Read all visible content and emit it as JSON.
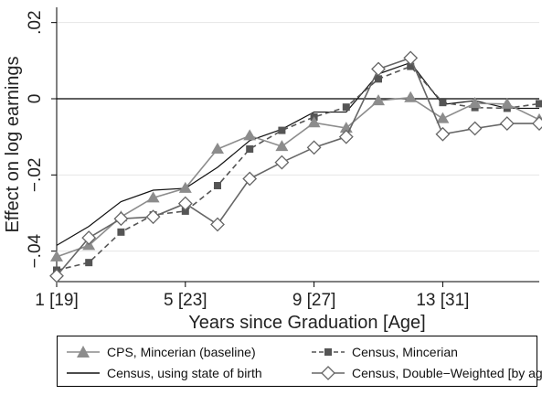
{
  "chart_data": {
    "type": "line",
    "xlabel": "Years since Graduation [Age]",
    "ylabel": "Effect on log earnings",
    "xlim": [
      1,
      16
    ],
    "ylim": [
      -0.048,
      0.024
    ],
    "x_ticks": [
      {
        "value": 1,
        "label": "1 [19]"
      },
      {
        "value": 5,
        "label": "5 [23]"
      },
      {
        "value": 9,
        "label": "9 [27]"
      },
      {
        "value": 13,
        "label": "13 [31]"
      }
    ],
    "y_ticks": [
      {
        "value": 0.02,
        "label": ".02"
      },
      {
        "value": 0,
        "label": "0"
      },
      {
        "value": -0.02,
        "label": "−.02"
      },
      {
        "value": -0.04,
        "label": "−.04"
      }
    ],
    "reference_line_y": 0,
    "grid": true,
    "legend_position": "bottom",
    "x": [
      1,
      2,
      3,
      4,
      5,
      6,
      7,
      8,
      9,
      10,
      11,
      12,
      13,
      14,
      15,
      16
    ],
    "series": [
      {
        "name": "CPS, Mincerian (baseline)",
        "marker": "triangle",
        "color": "#8c8c8c",
        "dash": "solid",
        "values": [
          -0.0415,
          -0.0385,
          -0.031,
          -0.026,
          -0.0235,
          -0.0132,
          -0.0097,
          -0.0125,
          -0.0063,
          -0.0077,
          -0.0005,
          0.0003,
          -0.0052,
          -0.0012,
          -0.0014,
          -0.0055
        ]
      },
      {
        "name": "Census, Minceian",
        "legend_label": "Census, Mincerian",
        "marker": "square",
        "color": "#555555",
        "dash": "dashed",
        "values": [
          -0.045,
          -0.043,
          -0.035,
          -0.0305,
          -0.0295,
          -0.0228,
          -0.0132,
          -0.0083,
          -0.0048,
          -0.0022,
          0.0052,
          0.0085,
          -0.001,
          -0.0023,
          -0.0025,
          -0.0013
        ]
      },
      {
        "name": "Census, using state of birth",
        "marker": "none",
        "color": "#111111",
        "dash": "solid",
        "values": [
          -0.0385,
          -0.0335,
          -0.027,
          -0.024,
          -0.0235,
          -0.018,
          -0.011,
          -0.008,
          -0.0035,
          -0.0035,
          0.0065,
          0.0095,
          -0.0015,
          -0.0005,
          -0.0025,
          -0.0025
        ]
      },
      {
        "name": "Census, Double−Weighted [by age]",
        "marker": "diamond",
        "color": "#666666",
        "dash": "solid",
        "values": [
          -0.0465,
          -0.0365,
          -0.0315,
          -0.031,
          -0.0275,
          -0.033,
          -0.021,
          -0.0167,
          -0.0128,
          -0.01,
          0.0078,
          0.0107,
          -0.0093,
          -0.0078,
          -0.0065,
          -0.0065
        ]
      }
    ]
  },
  "legend": [
    {
      "label": "CPS, Mincerian (baseline)"
    },
    {
      "label": "Census, Mincerian"
    },
    {
      "label": "Census, using state of birth"
    },
    {
      "label": "Census, Double−Weighted [by age]"
    }
  ]
}
